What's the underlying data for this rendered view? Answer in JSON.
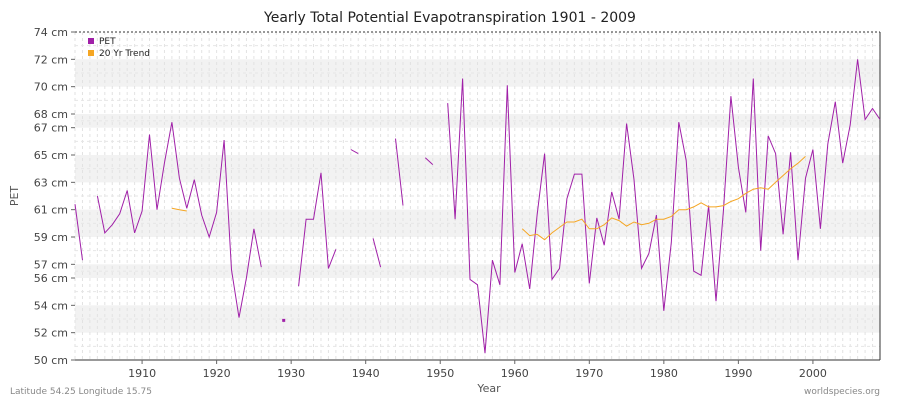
{
  "chart_data": {
    "type": "line",
    "title": "Yearly Total Potential Evapotranspiration 1901 - 2009",
    "xlabel": "Year",
    "ylabel": "PET",
    "xlim": [
      1901,
      2009
    ],
    "ylim": [
      50,
      74
    ],
    "x_ticks": [
      1910,
      1920,
      1930,
      1940,
      1950,
      1960,
      1970,
      1980,
      1990,
      2000
    ],
    "y_ticks": [
      50,
      52,
      54,
      56,
      57,
      59,
      61,
      63,
      65,
      67,
      68,
      70,
      72,
      74
    ],
    "y_tick_labels": [
      "50 cm",
      "52 cm",
      "54 cm",
      "56 cm",
      "57 cm",
      "59 cm",
      "61 cm",
      "63 cm",
      "65 cm",
      "67 cm",
      "68 cm",
      "70 cm",
      "72 cm",
      "74 cm"
    ],
    "legend": [
      {
        "name": "PET",
        "color": "#a020a8"
      },
      {
        "name": "20 Yr Trend",
        "color": "#f5a623"
      }
    ],
    "series": [
      {
        "name": "PET",
        "color": "#a020a8",
        "x": [
          1901,
          1902,
          1903,
          1904,
          1905,
          1906,
          1907,
          1908,
          1909,
          1910,
          1911,
          1912,
          1913,
          1914,
          1915,
          1916,
          1917,
          1918,
          1919,
          1920,
          1921,
          1922,
          1923,
          1924,
          1925,
          1926,
          1927,
          1928,
          1929,
          1930,
          1931,
          1932,
          1933,
          1934,
          1935,
          1936,
          1937,
          1938,
          1939,
          1940,
          1941,
          1942,
          1943,
          1944,
          1945,
          1946,
          1947,
          1948,
          1949,
          1950,
          1951,
          1952,
          1953,
          1954,
          1955,
          1956,
          1957,
          1958,
          1959,
          1960,
          1961,
          1962,
          1963,
          1964,
          1965,
          1966,
          1967,
          1968,
          1969,
          1970,
          1971,
          1972,
          1973,
          1974,
          1975,
          1976,
          1977,
          1978,
          1979,
          1980,
          1981,
          1982,
          1983,
          1984,
          1985,
          1986,
          1987,
          1988,
          1989,
          1990,
          1991,
          1992,
          1993,
          1994,
          1995,
          1996,
          1997,
          1998,
          1999,
          2000,
          2001,
          2002,
          2003,
          2004,
          2005,
          2006,
          2007,
          2008,
          2009
        ],
        "values": [
          61.4,
          57.3,
          null,
          62.0,
          59.3,
          59.9,
          60.7,
          62.4,
          59.3,
          60.9,
          66.5,
          61.0,
          64.4,
          67.4,
          63.3,
          61.1,
          63.2,
          60.6,
          59.0,
          60.8,
          66.1,
          56.6,
          53.1,
          56.0,
          59.6,
          56.8,
          null,
          null,
          52.9,
          null,
          55.4,
          60.3,
          60.3,
          63.7,
          56.7,
          58.1,
          null,
          65.4,
          65.1,
          null,
          58.9,
          56.8,
          null,
          66.2,
          61.3,
          null,
          null,
          64.8,
          64.3,
          null,
          68.8,
          60.3,
          70.6,
          55.9,
          55.5,
          50.5,
          57.3,
          55.5,
          70.1,
          56.4,
          58.5,
          55.2,
          60.6,
          65.1,
          55.9,
          56.7,
          61.8,
          63.6,
          63.6,
          55.6,
          60.4,
          58.4,
          62.3,
          60.3,
          67.3,
          63.2,
          56.7,
          57.8,
          60.6,
          53.6,
          58.6,
          67.4,
          64.6,
          56.5,
          56.2,
          61.3,
          54.3,
          61.0,
          69.3,
          64.1,
          60.8,
          70.6,
          58.0,
          66.4,
          65.1,
          59.2,
          65.2,
          57.3,
          63.3,
          65.4,
          59.6,
          65.8,
          68.9,
          64.4,
          67.2,
          72.0,
          67.6,
          68.4,
          67.6
        ]
      },
      {
        "name": "20 Yr Trend",
        "color": "#f5a623",
        "x": [
          1914,
          1915,
          1916,
          null,
          1961,
          1962,
          1963,
          1964,
          1965,
          1966,
          1967,
          1968,
          1969,
          1970,
          1971,
          1972,
          1973,
          1974,
          1975,
          1976,
          1977,
          1978,
          1979,
          1980,
          1981,
          1982,
          1983,
          1984,
          1985,
          1986,
          1987,
          1988,
          1989,
          1990,
          1991,
          1992,
          1993,
          1994,
          1995,
          1996,
          1997,
          1998,
          1999
        ],
        "values": [
          61.1,
          61.0,
          60.9,
          null,
          59.6,
          59.1,
          59.2,
          58.8,
          59.3,
          59.7,
          60.1,
          60.1,
          60.3,
          59.6,
          59.6,
          59.9,
          60.4,
          60.2,
          59.8,
          60.1,
          59.9,
          60.0,
          60.3,
          60.3,
          60.5,
          61.0,
          61.0,
          61.2,
          61.5,
          61.2,
          61.2,
          61.3,
          61.6,
          61.8,
          62.2,
          62.5,
          62.6,
          62.5,
          63.0,
          63.5,
          64.0,
          64.4,
          64.9
        ]
      }
    ]
  },
  "footer": {
    "left": "Latitude 54.25 Longitude 15.75",
    "right": "worldspecies.org"
  }
}
